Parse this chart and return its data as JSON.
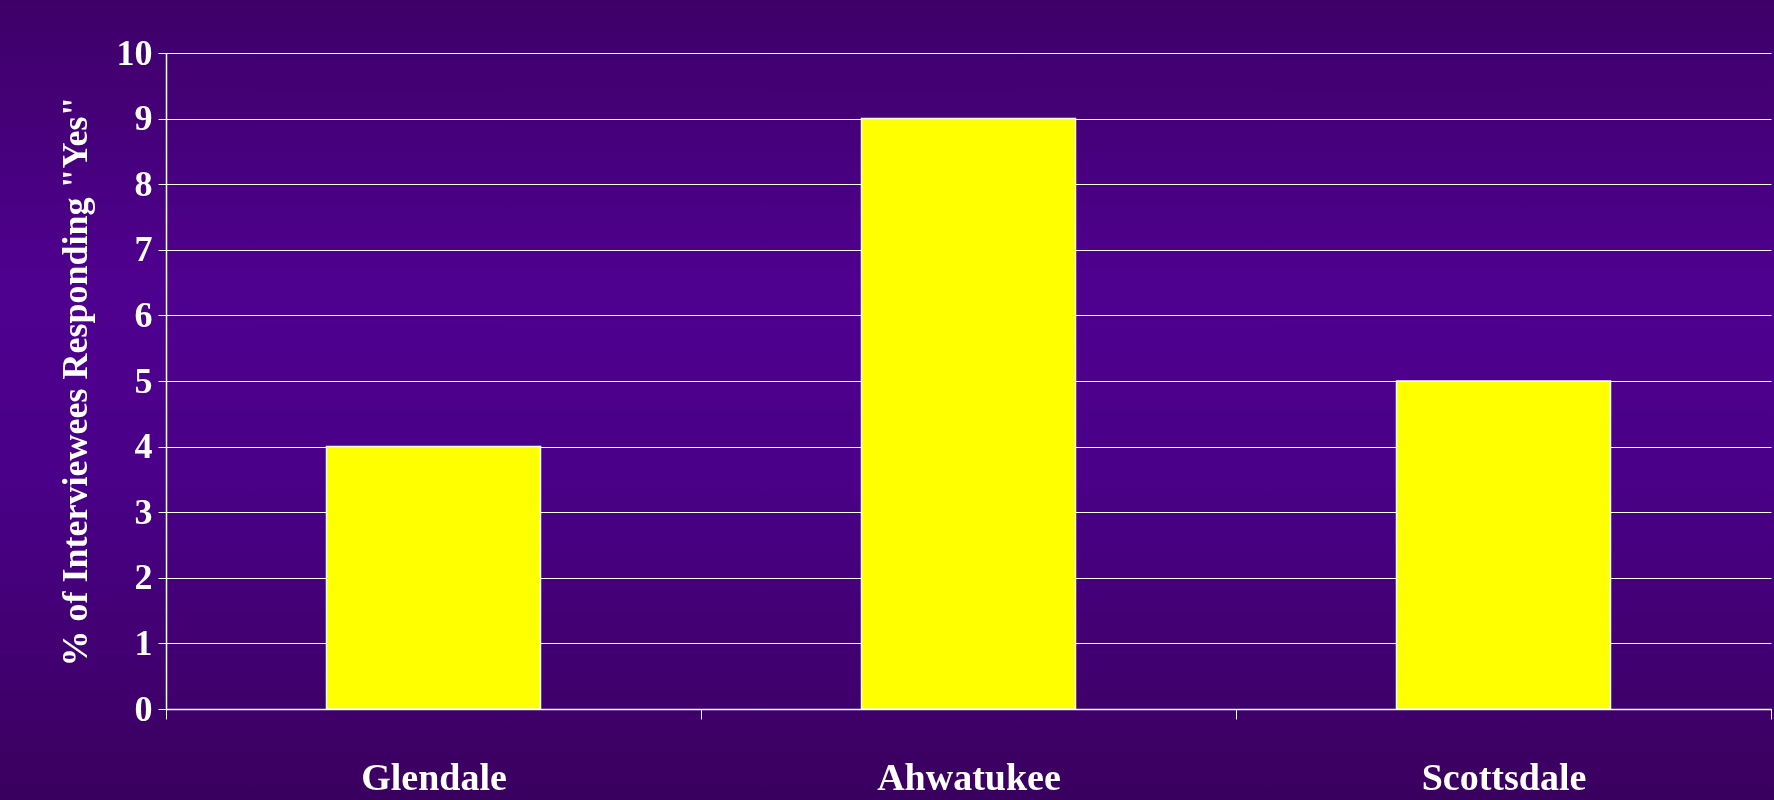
{
  "chart_data": {
    "type": "bar",
    "ylabel": "% of Interviewees Responding \"Yes\"",
    "categories": [
      "Glendale",
      "Ahwatukee",
      "Scottsdale"
    ],
    "values": [
      4,
      9,
      5
    ],
    "color": "#ffff00",
    "ylim": [
      0,
      10
    ],
    "yticks": [
      0,
      1,
      2,
      3,
      4,
      5,
      6,
      7,
      8,
      9,
      10
    ],
    "grid": "y"
  }
}
